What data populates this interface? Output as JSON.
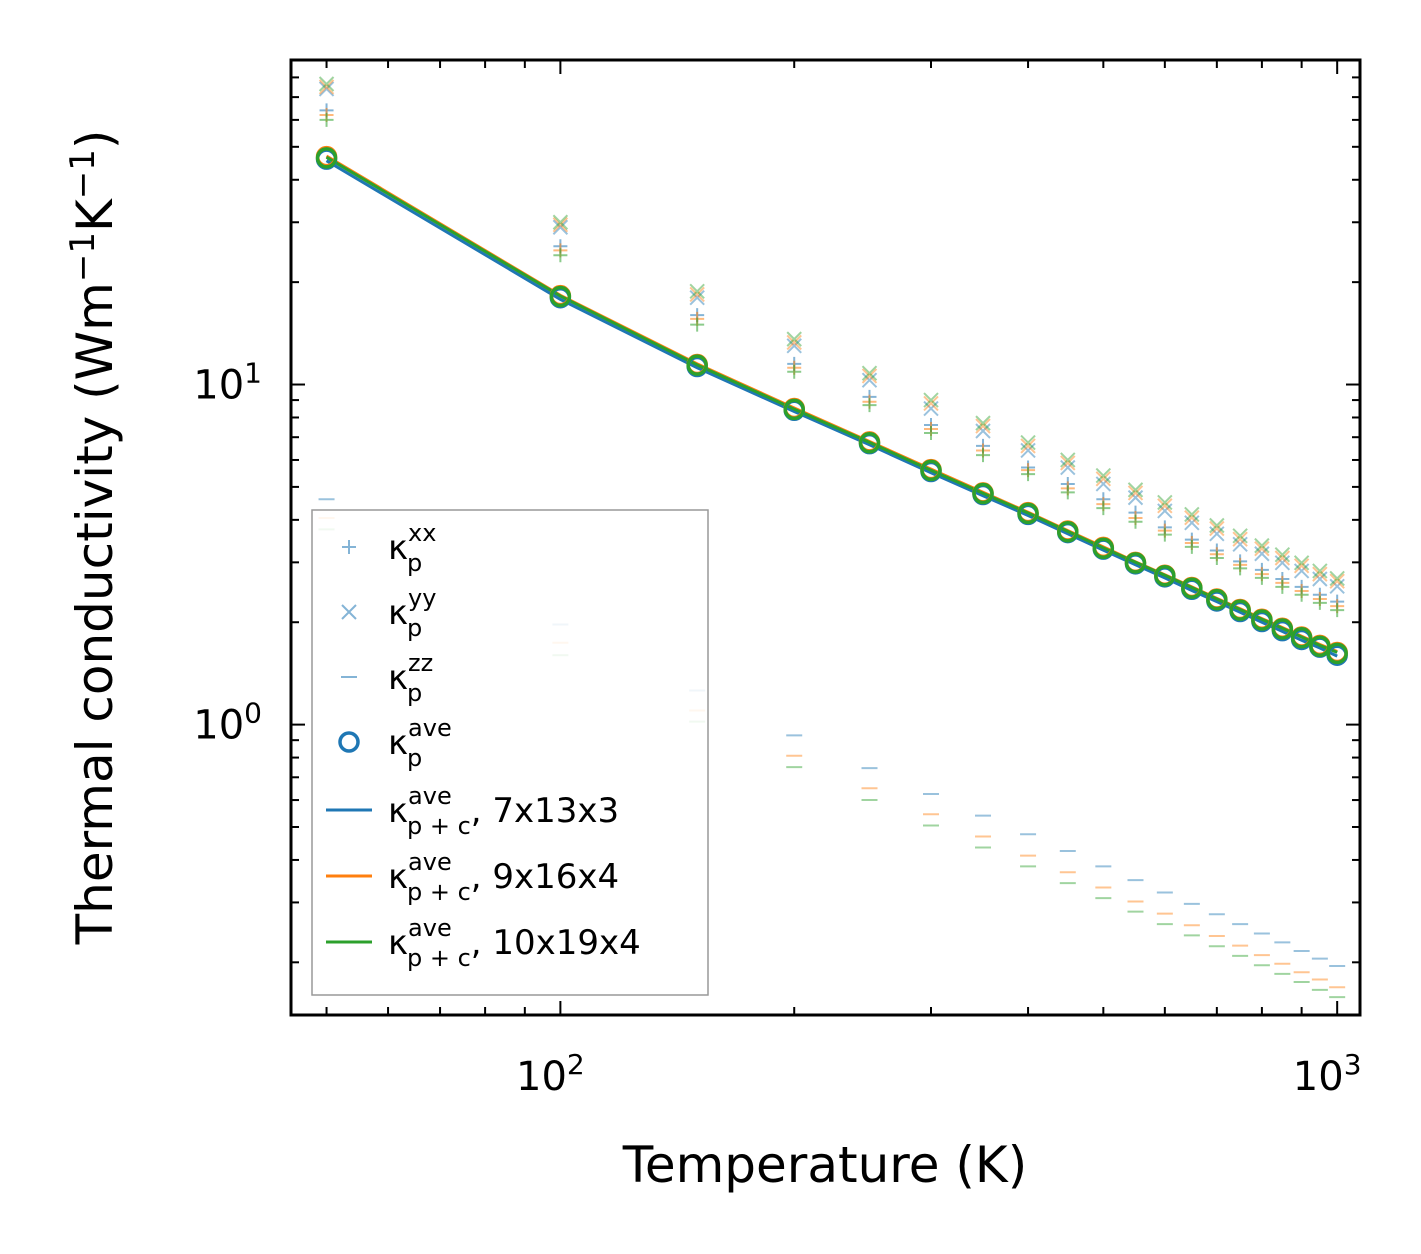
{
  "chart_data": {
    "type": "scatter",
    "xscale": "log",
    "yscale": "log",
    "xlabel": "Temperature (K)",
    "ylabel": "Thermal conductivity (Wm",
    "ylabel_sup1": "−1",
    "ylabel_mid": "K",
    "ylabel_sup2": "−1",
    "ylabel_end": ")",
    "xlim": [
      45,
      1070
    ],
    "ylim": [
      0.14,
      90
    ],
    "x_ticks": [
      {
        "base": "10",
        "exp": "2",
        "value": 100
      },
      {
        "base": "10",
        "exp": "3",
        "value": 1000
      }
    ],
    "y_ticks": [
      {
        "base": "10",
        "exp": "0",
        "value": 1
      },
      {
        "base": "10",
        "exp": "1",
        "value": 10
      }
    ],
    "x": [
      50,
      100,
      150,
      200,
      250,
      300,
      350,
      400,
      450,
      500,
      550,
      600,
      650,
      700,
      750,
      800,
      850,
      900,
      950,
      1000
    ],
    "series": [
      {
        "name": "kp_xx 7x13x3",
        "marker": "plus",
        "color": "#1f77b4",
        "values": [
          64.0,
          25.5,
          16.0,
          11.5,
          9.2,
          7.6,
          6.6,
          5.7,
          5.1,
          4.6,
          4.2,
          3.8,
          3.5,
          3.25,
          3.02,
          2.85,
          2.68,
          2.54,
          2.41,
          2.3
        ]
      },
      {
        "name": "kp_xx 9x16x4",
        "marker": "plus",
        "color": "#ff7f0e",
        "values": [
          62.0,
          24.8,
          15.6,
          11.2,
          8.9,
          7.4,
          6.4,
          5.6,
          4.95,
          4.45,
          4.05,
          3.72,
          3.42,
          3.17,
          2.95,
          2.77,
          2.61,
          2.47,
          2.34,
          2.23
        ]
      },
      {
        "name": "kp_xx 10x19x4",
        "marker": "plus",
        "color": "#2ca02c",
        "values": [
          60.0,
          24.0,
          15.0,
          10.9,
          8.7,
          7.2,
          6.2,
          5.45,
          4.82,
          4.33,
          3.95,
          3.62,
          3.33,
          3.09,
          2.88,
          2.7,
          2.54,
          2.41,
          2.28,
          2.17
        ]
      },
      {
        "name": "kp_yy 7x13x3",
        "marker": "x",
        "color": "#1f77b4",
        "values": [
          74.0,
          29.0,
          18.0,
          13.0,
          10.3,
          8.5,
          7.3,
          6.4,
          5.7,
          5.1,
          4.65,
          4.25,
          3.92,
          3.64,
          3.39,
          3.18,
          2.99,
          2.83,
          2.68,
          2.55
        ]
      },
      {
        "name": "kp_yy 9x16x4",
        "marker": "x",
        "color": "#ff7f0e",
        "values": [
          75.0,
          29.5,
          18.4,
          13.3,
          10.6,
          8.8,
          7.55,
          6.6,
          5.88,
          5.28,
          4.8,
          4.4,
          4.06,
          3.77,
          3.51,
          3.29,
          3.09,
          2.93,
          2.77,
          2.64
        ]
      },
      {
        "name": "kp_yy 10x19x4",
        "marker": "x",
        "color": "#2ca02c",
        "values": [
          76.5,
          30.0,
          18.8,
          13.6,
          10.8,
          9.0,
          7.7,
          6.75,
          6.0,
          5.4,
          4.9,
          4.5,
          4.15,
          3.85,
          3.59,
          3.36,
          3.16,
          2.99,
          2.83,
          2.69
        ]
      },
      {
        "name": "kp_zz 7x13x3",
        "marker": "hline",
        "color": "#1f77b4",
        "values": [
          4.6,
          1.97,
          1.26,
          0.93,
          0.745,
          0.625,
          0.54,
          0.476,
          0.425,
          0.383,
          0.349,
          0.321,
          0.297,
          0.277,
          0.259,
          0.243,
          0.229,
          0.216,
          0.205,
          0.195
        ]
      },
      {
        "name": "kp_zz 9x16x4",
        "marker": "hline",
        "color": "#ff7f0e",
        "values": [
          4.05,
          1.74,
          1.1,
          0.81,
          0.65,
          0.545,
          0.469,
          0.412,
          0.368,
          0.332,
          0.302,
          0.278,
          0.257,
          0.239,
          0.224,
          0.21,
          0.198,
          0.187,
          0.178,
          0.169
        ]
      },
      {
        "name": "kp_zz 10x19x4",
        "marker": "hline",
        "color": "#2ca02c",
        "values": [
          3.75,
          1.6,
          1.02,
          0.75,
          0.6,
          0.505,
          0.435,
          0.383,
          0.342,
          0.309,
          0.282,
          0.259,
          0.24,
          0.223,
          0.209,
          0.196,
          0.185,
          0.175,
          0.166,
          0.158
        ]
      },
      {
        "name": "kp_ave 7x13x3",
        "marker": "circle",
        "color": "#1f77b4",
        "values": [
          46.0,
          18.0,
          11.3,
          8.4,
          6.7,
          5.55,
          4.75,
          4.15,
          3.67,
          3.28,
          2.97,
          2.72,
          2.5,
          2.31,
          2.15,
          2.01,
          1.89,
          1.78,
          1.69,
          1.6
        ]
      },
      {
        "name": "kp_ave 9x16x4",
        "marker": "circle",
        "color": "#ff7f0e",
        "values": [
          46.8,
          18.25,
          11.45,
          8.5,
          6.78,
          5.62,
          4.8,
          4.2,
          3.71,
          3.32,
          3.0,
          2.75,
          2.53,
          2.34,
          2.18,
          2.04,
          1.92,
          1.81,
          1.71,
          1.63
        ]
      },
      {
        "name": "kp_ave 10x19x4",
        "marker": "circle",
        "color": "#2ca02c",
        "values": [
          46.4,
          18.15,
          11.4,
          8.45,
          6.74,
          5.59,
          4.78,
          4.18,
          3.69,
          3.3,
          2.99,
          2.74,
          2.52,
          2.33,
          2.17,
          2.03,
          1.91,
          1.8,
          1.7,
          1.62
        ]
      },
      {
        "name": "kpc_ave 7x13x3",
        "marker": "line",
        "color": "#1f77b4",
        "values": [
          45.5,
          17.8,
          11.2,
          8.33,
          6.65,
          5.5,
          4.71,
          4.12,
          3.64,
          3.26,
          2.95,
          2.7,
          2.48,
          2.3,
          2.14,
          2.0,
          1.88,
          1.77,
          1.68,
          1.59
        ]
      },
      {
        "name": "kpc_ave 9x16x4",
        "marker": "line",
        "color": "#ff7f0e",
        "values": [
          47.0,
          18.3,
          11.5,
          8.53,
          6.8,
          5.64,
          4.82,
          4.21,
          3.72,
          3.33,
          3.01,
          2.76,
          2.54,
          2.35,
          2.19,
          2.05,
          1.93,
          1.82,
          1.72,
          1.64
        ]
      },
      {
        "name": "kpc_ave 10x19x4",
        "marker": "line",
        "color": "#2ca02c",
        "values": [
          46.6,
          18.2,
          11.42,
          8.47,
          6.76,
          5.6,
          4.79,
          4.19,
          3.7,
          3.31,
          3.0,
          2.75,
          2.53,
          2.34,
          2.18,
          2.04,
          1.92,
          1.81,
          1.71,
          1.63
        ]
      }
    ],
    "legend": {
      "position": "lower-left",
      "entries": [
        {
          "marker": "plus",
          "color": "#1f77b4",
          "sym": "κ",
          "sub": "p",
          "sup": "xx",
          "suffix": ""
        },
        {
          "marker": "x",
          "color": "#1f77b4",
          "sym": "κ",
          "sub": "p",
          "sup": "yy",
          "suffix": ""
        },
        {
          "marker": "hline",
          "color": "#1f77b4",
          "sym": "κ",
          "sub": "p",
          "sup": "zz",
          "suffix": ""
        },
        {
          "marker": "circle",
          "color": "#1f77b4",
          "sym": "κ",
          "sub": "p",
          "sup": "ave",
          "suffix": ""
        },
        {
          "marker": "line",
          "color": "#1f77b4",
          "sym": "κ",
          "sub": "p + c",
          "sup": "ave",
          "suffix": ", 7x13x3"
        },
        {
          "marker": "line",
          "color": "#ff7f0e",
          "sym": "κ",
          "sub": "p + c",
          "sup": "ave",
          "suffix": ", 9x16x4"
        },
        {
          "marker": "line",
          "color": "#2ca02c",
          "sym": "κ",
          "sub": "p + c",
          "sup": "ave",
          "suffix": ", 10x19x4"
        }
      ]
    }
  }
}
